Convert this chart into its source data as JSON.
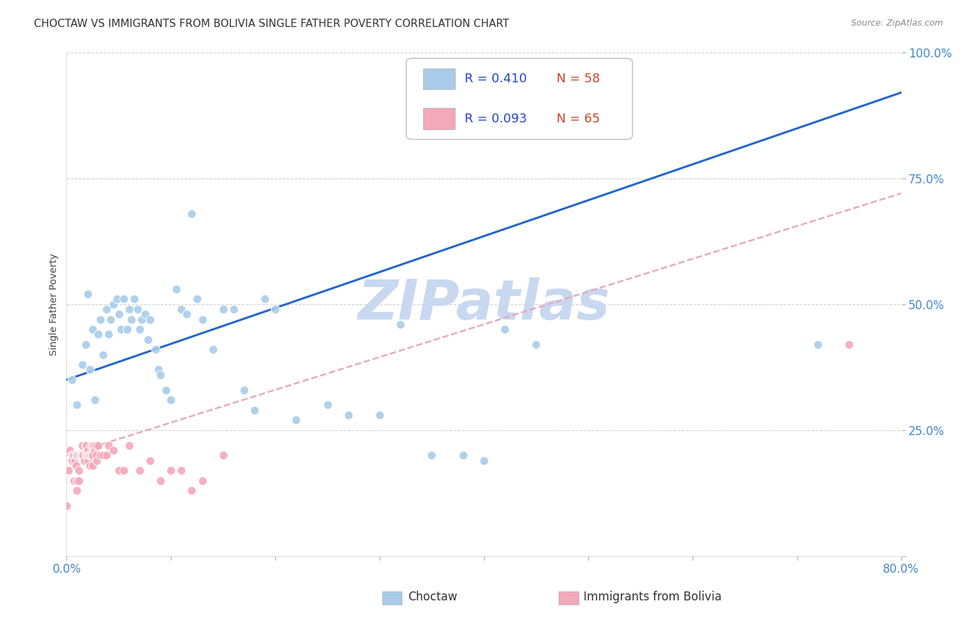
{
  "title": "CHOCTAW VS IMMIGRANTS FROM BOLIVIA SINGLE FATHER POVERTY CORRELATION CHART",
  "source": "Source: ZipAtlas.com",
  "ylabel": "Single Father Poverty",
  "xlim": [
    0,
    0.8
  ],
  "ylim": [
    0,
    1.0
  ],
  "xtick_positions": [
    0.0,
    0.1,
    0.2,
    0.3,
    0.4,
    0.5,
    0.6,
    0.7,
    0.8
  ],
  "xticklabels": [
    "0.0%",
    "",
    "",
    "",
    "",
    "",
    "",
    "",
    "80.0%"
  ],
  "ytick_positions": [
    0.0,
    0.25,
    0.5,
    0.75,
    1.0
  ],
  "yticklabels": [
    "",
    "25.0%",
    "50.0%",
    "75.0%",
    "100.0%"
  ],
  "choctaw_R": 0.41,
  "choctaw_N": 58,
  "bolivia_R": 0.093,
  "bolivia_N": 65,
  "choctaw_color": "#A8CCEA",
  "bolivia_color": "#F4A8BB",
  "trendline_choctaw_color": "#2266CC",
  "trendline_bolivia_color": "#E8AABB",
  "watermark_color": "#C8D8F0",
  "background_color": "#FFFFFF",
  "choctaw_x": [
    0.005,
    0.01,
    0.015,
    0.018,
    0.02,
    0.022,
    0.025,
    0.027,
    0.03,
    0.032,
    0.035,
    0.038,
    0.04,
    0.042,
    0.045,
    0.048,
    0.05,
    0.052,
    0.055,
    0.058,
    0.06,
    0.062,
    0.065,
    0.068,
    0.07,
    0.072,
    0.075,
    0.078,
    0.08,
    0.085,
    0.088,
    0.09,
    0.095,
    0.1,
    0.105,
    0.11,
    0.115,
    0.12,
    0.125,
    0.13,
    0.14,
    0.15,
    0.16,
    0.17,
    0.18,
    0.19,
    0.2,
    0.22,
    0.25,
    0.27,
    0.3,
    0.32,
    0.35,
    0.38,
    0.4,
    0.42,
    0.45,
    0.72
  ],
  "choctaw_y": [
    0.35,
    0.3,
    0.38,
    0.42,
    0.52,
    0.37,
    0.45,
    0.31,
    0.44,
    0.47,
    0.4,
    0.49,
    0.44,
    0.47,
    0.5,
    0.51,
    0.48,
    0.45,
    0.51,
    0.45,
    0.49,
    0.47,
    0.51,
    0.49,
    0.45,
    0.47,
    0.48,
    0.43,
    0.47,
    0.41,
    0.37,
    0.36,
    0.33,
    0.31,
    0.53,
    0.49,
    0.48,
    0.68,
    0.51,
    0.47,
    0.41,
    0.49,
    0.49,
    0.33,
    0.29,
    0.51,
    0.49,
    0.27,
    0.3,
    0.28,
    0.28,
    0.46,
    0.2,
    0.2,
    0.19,
    0.45,
    0.42,
    0.42
  ],
  "bolivia_x": [
    0.0,
    0.002,
    0.003,
    0.005,
    0.005,
    0.006,
    0.007,
    0.007,
    0.008,
    0.009,
    0.009,
    0.01,
    0.01,
    0.01,
    0.011,
    0.012,
    0.012,
    0.013,
    0.013,
    0.014,
    0.015,
    0.015,
    0.016,
    0.016,
    0.017,
    0.018,
    0.018,
    0.019,
    0.019,
    0.02,
    0.02,
    0.02,
    0.021,
    0.022,
    0.022,
    0.023,
    0.023,
    0.024,
    0.024,
    0.025,
    0.025,
    0.025,
    0.026,
    0.027,
    0.028,
    0.028,
    0.029,
    0.03,
    0.032,
    0.035,
    0.038,
    0.04,
    0.045,
    0.05,
    0.055,
    0.06,
    0.07,
    0.08,
    0.09,
    0.1,
    0.11,
    0.12,
    0.13,
    0.15,
    0.75
  ],
  "bolivia_y": [
    0.1,
    0.17,
    0.21,
    0.2,
    0.19,
    0.2,
    0.2,
    0.15,
    0.19,
    0.2,
    0.18,
    0.2,
    0.15,
    0.13,
    0.2,
    0.15,
    0.17,
    0.2,
    0.2,
    0.2,
    0.2,
    0.22,
    0.2,
    0.2,
    0.19,
    0.22,
    0.2,
    0.22,
    0.2,
    0.2,
    0.19,
    0.21,
    0.2,
    0.2,
    0.18,
    0.22,
    0.2,
    0.22,
    0.2,
    0.18,
    0.22,
    0.2,
    0.22,
    0.21,
    0.22,
    0.2,
    0.19,
    0.22,
    0.2,
    0.2,
    0.2,
    0.22,
    0.21,
    0.17,
    0.17,
    0.22,
    0.17,
    0.19,
    0.15,
    0.17,
    0.17,
    0.13,
    0.15,
    0.2,
    0.42
  ],
  "choctaw_trendline_x0": 0.0,
  "choctaw_trendline_y0": 0.35,
  "choctaw_trendline_x1": 0.8,
  "choctaw_trendline_y1": 0.92,
  "bolivia_trendline_x0": 0.0,
  "bolivia_trendline_y0": 0.2,
  "bolivia_trendline_x1": 0.8,
  "bolivia_trendline_y1": 0.72,
  "r_color": "#2244CC",
  "n_color": "#CC4422",
  "tick_color": "#4488CC",
  "label_color": "#444444",
  "legend_fontsize": 13,
  "title_fontsize": 11,
  "axis_label_fontsize": 10,
  "tick_fontsize": 12
}
